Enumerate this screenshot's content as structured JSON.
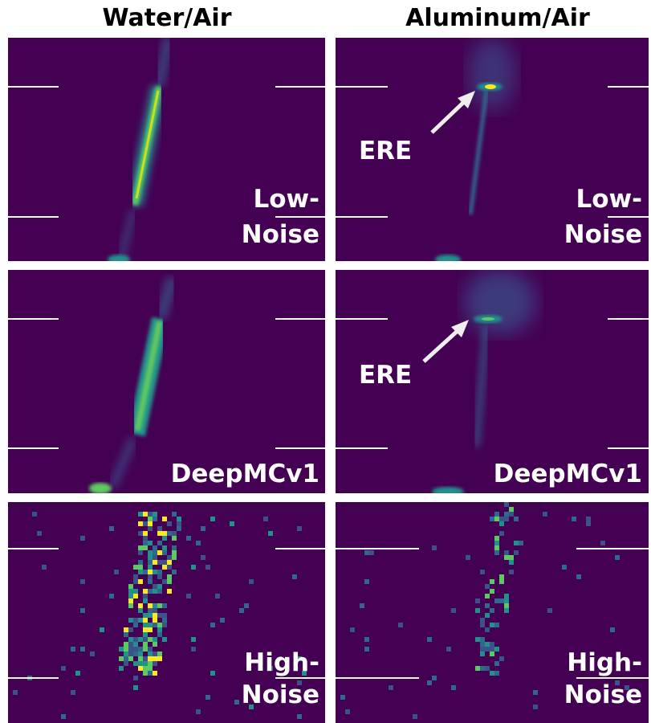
{
  "column_titles": [
    "Water/Air",
    "Aluminum/Air"
  ],
  "panels": [
    {
      "label": [
        "Low-",
        "Noise"
      ]
    },
    {
      "label": [
        "Low-",
        "Noise"
      ],
      "annotation": "ERE"
    },
    {
      "label": [
        "DeepMCv1"
      ]
    },
    {
      "label": [
        "DeepMCv1"
      ],
      "annotation": "ERE"
    },
    {
      "label": [
        "High-",
        "Noise"
      ]
    },
    {
      "label": [
        "High-",
        "Noise"
      ]
    }
  ]
}
